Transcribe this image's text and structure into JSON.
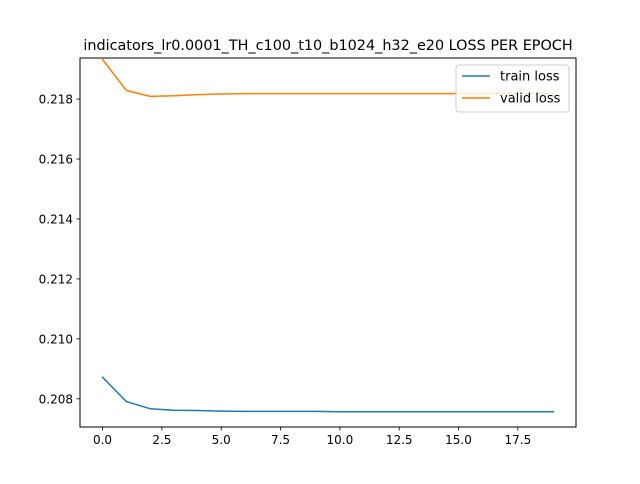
{
  "chart_data": {
    "type": "line",
    "title": "indicators_lr0.0001_TH_c100_t10_b1024_h32_e20 LOSS PER EPOCH",
    "xlabel": "",
    "ylabel": "",
    "x": [
      0,
      1,
      2,
      3,
      4,
      5,
      6,
      7,
      8,
      9,
      10,
      11,
      12,
      13,
      14,
      15,
      16,
      17,
      18,
      19
    ],
    "xlim": [
      -0.95,
      19.95
    ],
    "ylim": [
      0.20706,
      0.21937
    ],
    "xticks": [
      0.0,
      2.5,
      5.0,
      7.5,
      10.0,
      12.5,
      15.0,
      17.5
    ],
    "xtick_labels": [
      "0.0",
      "2.5",
      "5.0",
      "7.5",
      "10.0",
      "12.5",
      "15.0",
      "17.5"
    ],
    "yticks": [
      0.208,
      0.21,
      0.212,
      0.214,
      0.216,
      0.218
    ],
    "ytick_labels": [
      "0.208",
      "0.210",
      "0.212",
      "0.214",
      "0.216",
      "0.218"
    ],
    "grid": false,
    "legend_position": "top-right",
    "series": [
      {
        "name": "train loss",
        "color": "#1f77b4",
        "values": [
          0.20872,
          0.20791,
          0.20767,
          0.20762,
          0.20761,
          0.20759,
          0.20758,
          0.20758,
          0.20758,
          0.20758,
          0.20757,
          0.20757,
          0.20757,
          0.20757,
          0.20757,
          0.20757,
          0.20757,
          0.20757,
          0.20757,
          0.20757
        ]
      },
      {
        "name": "valid loss",
        "color": "#ff7f0e",
        "values": [
          0.21932,
          0.21829,
          0.21809,
          0.21811,
          0.21815,
          0.21817,
          0.21818,
          0.21818,
          0.21818,
          0.21818,
          0.21818,
          0.21818,
          0.21818,
          0.21818,
          0.21818,
          0.21818,
          0.21818,
          0.21818,
          0.21818,
          0.21818
        ]
      }
    ]
  }
}
